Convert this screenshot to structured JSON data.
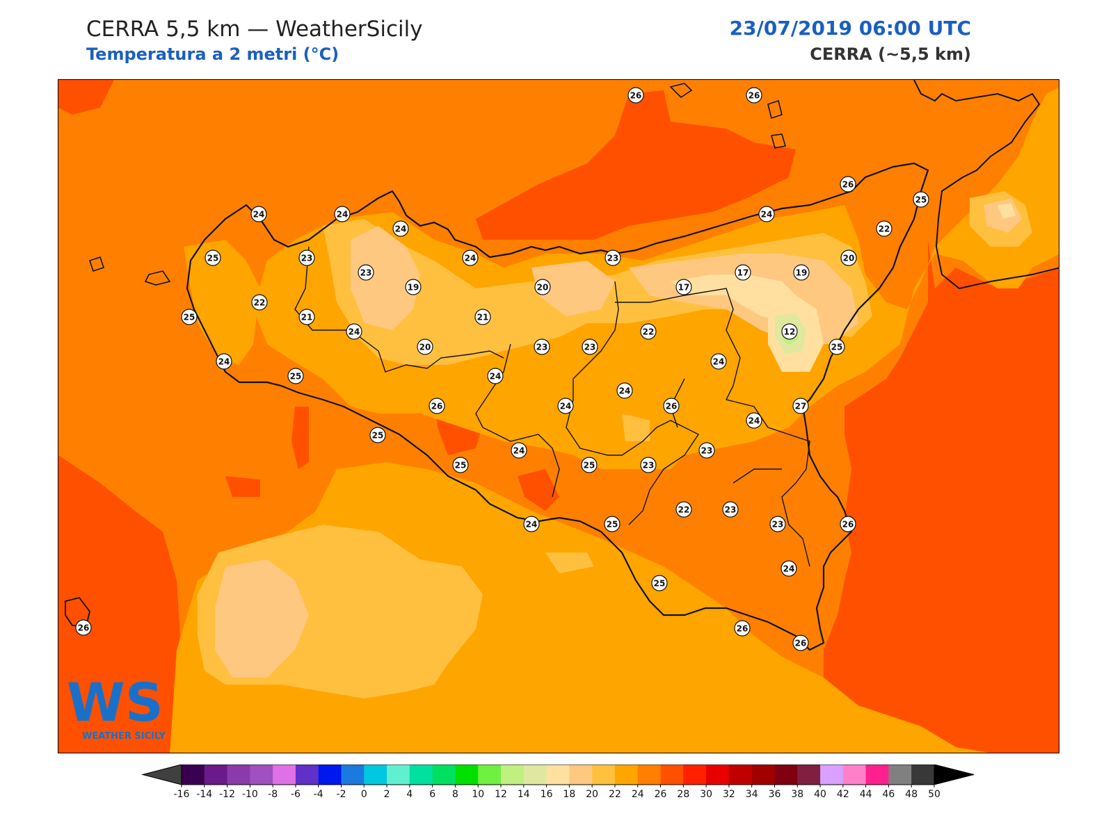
{
  "header": {
    "title": "CERRA 5,5 km — WeatherSicily",
    "subtitle": "Temperatura a 2 metri (°C)",
    "datetime": "23/07/2019 06:00 UTC",
    "model": "CERRA (~5,5 km)"
  },
  "logo": {
    "letters": "WS",
    "name": "WEATHER SICILY"
  },
  "station_values": [
    26,
    26,
    26,
    25,
    24,
    24,
    24,
    25,
    23,
    24,
    23,
    22,
    21,
    23,
    19,
    20,
    20,
    17,
    17,
    19,
    20,
    24,
    22,
    21,
    12,
    25,
    25,
    24,
    20,
    23,
    23,
    22,
    24,
    24,
    25,
    24,
    24,
    24,
    26,
    26,
    27,
    24,
    25,
    24,
    25,
    25,
    23,
    23,
    22,
    23,
    26,
    24,
    25,
    23,
    24,
    25,
    26,
    26,
    26
  ],
  "colorbar": {
    "ticks": [
      "-16",
      "-14",
      "-12",
      "-10",
      "-8",
      "-6",
      "-4",
      "-2",
      "0",
      "2",
      "4",
      "6",
      "8",
      "10",
      "12",
      "14",
      "16",
      "18",
      "20",
      "22",
      "24",
      "26",
      "28",
      "30",
      "32",
      "34",
      "36",
      "38",
      "40",
      "42",
      "44",
      "46",
      "48",
      "50"
    ],
    "colors": [
      "#3a0050",
      "#6a1a8a",
      "#8a3aaa",
      "#a050c0",
      "#e070e8",
      "#6030c8",
      "#0018f0",
      "#1a7ae0",
      "#00c8e0",
      "#60f0d0",
      "#00e0a0",
      "#00e060",
      "#00e000",
      "#70f040",
      "#c0f080",
      "#e0e8a0",
      "#ffe0a0",
      "#ffc880",
      "#ffc040",
      "#ffa500",
      "#ff7f00",
      "#ff5000",
      "#ff2000",
      "#e80000",
      "#c00000",
      "#a00000",
      "#800010",
      "#802040",
      "#d8a0ff",
      "#ff80c8",
      "#ff2090",
      "#808080",
      "#383838"
    ],
    "under_color": "#404040",
    "over_color": "#000000"
  }
}
